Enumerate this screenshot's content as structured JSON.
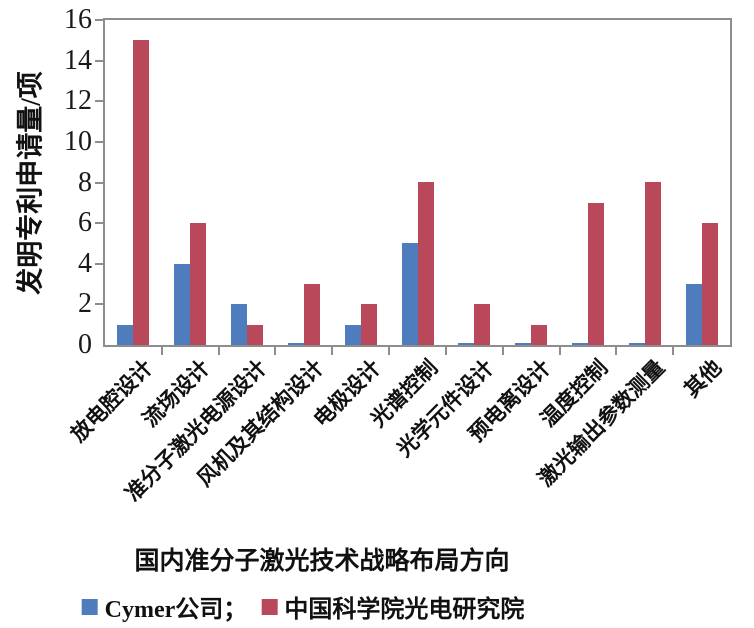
{
  "chart_data": {
    "type": "bar",
    "title": "",
    "xlabel": "国内准分子激光技术战略布局方向",
    "ylabel": "发明专利申请量/项",
    "ylim": [
      0,
      16
    ],
    "yticks": [
      0,
      2,
      4,
      6,
      8,
      10,
      12,
      14,
      16
    ],
    "grid": false,
    "legend_position": "bottom",
    "categories": [
      "放电腔设计",
      "流场设计",
      "准分子激光电源设计",
      "风机及其结构设计",
      "电极设计",
      "光谱控制",
      "光学元件设计",
      "预电离设计",
      "温度控制",
      "激光输出参数测量",
      "其他"
    ],
    "series": [
      {
        "name": "Cymer公司",
        "color": "#4F7CBD",
        "values": [
          1,
          4,
          2,
          0.1,
          1,
          5,
          0.1,
          0.1,
          0.1,
          0.1,
          3
        ]
      },
      {
        "name": "中国科学院光电研究院",
        "color": "#B9485A",
        "values": [
          15,
          6,
          1,
          3,
          2,
          8,
          2,
          1,
          7,
          8,
          6
        ]
      }
    ]
  },
  "legend": {
    "items": [
      {
        "label": "Cymer公司；",
        "color": "#4F7CBD"
      },
      {
        "label": "中国科学院光电研究院",
        "color": "#B9485A"
      }
    ]
  },
  "axis_color": "#8d8d8d"
}
